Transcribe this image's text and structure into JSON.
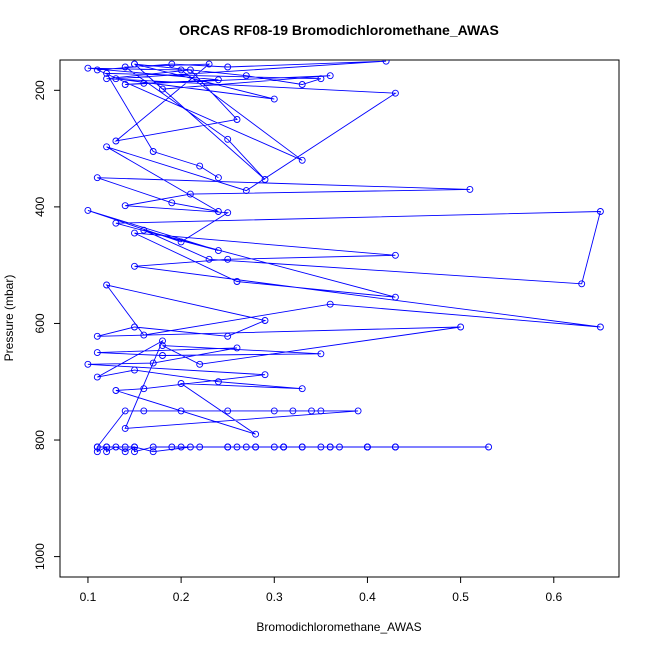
{
  "chart_data": {
    "type": "line",
    "title": "ORCAS RF08-19 Bromodichloromethane_AWAS",
    "xlabel": "Bromodichloromethane_AWAS",
    "ylabel": "Pressure (mbar)",
    "xlim": [
      0.07,
      0.67
    ],
    "ylim": [
      1035,
      148
    ],
    "y_reversed": true,
    "grid": false,
    "legend": "none",
    "x_ticks": [
      "0.1",
      "0.2",
      "0.3",
      "0.4",
      "0.5",
      "0.6"
    ],
    "x_tick_values": [
      0.1,
      0.2,
      0.3,
      0.4,
      0.5,
      0.6
    ],
    "y_ticks": [
      "200",
      "400",
      "600",
      "800",
      "1000"
    ],
    "y_tick_values": [
      200,
      400,
      600,
      800,
      1000
    ],
    "series_color": "#0000ff",
    "series": [
      {
        "x": [
          0.11,
          0.11,
          0.12,
          0.12,
          0.13,
          0.14,
          0.15,
          0.15,
          0.17,
          0.19,
          0.2,
          0.22,
          0.25,
          0.26,
          0.27,
          0.28,
          0.3,
          0.31,
          0.31,
          0.33,
          0.35,
          0.36,
          0.37,
          0.4,
          0.4,
          0.43,
          0.53,
          0.43,
          0.4,
          0.36,
          0.33,
          0.31,
          0.28,
          0.25,
          0.21,
          0.17,
          0.15,
          0.14,
          0.12,
          0.11,
          0.14,
          0.16,
          0.2,
          0.25,
          0.3,
          0.32,
          0.34,
          0.35,
          0.39,
          0.14,
          0.18,
          0.11,
          0.15,
          0.24,
          0.33,
          0.2,
          0.28,
          0.13,
          0.16,
          0.29,
          0.1,
          0.17,
          0.26,
          0.11,
          0.18,
          0.35,
          0.18,
          0.22,
          0.5,
          0.11,
          0.15,
          0.25,
          0.29,
          0.12,
          0.16,
          0.36,
          0.65,
          0.15,
          0.25,
          0.43,
          0.15,
          0.26,
          0.43,
          0.16,
          0.23,
          0.63,
          0.65,
          0.13,
          0.24,
          0.1,
          0.2,
          0.25,
          0.14,
          0.21,
          0.51,
          0.11,
          0.19,
          0.24,
          0.12,
          0.27,
          0.43,
          0.12,
          0.21,
          0.26,
          0.13,
          0.23,
          0.14,
          0.25,
          0.29,
          0.15,
          0.18,
          0.36,
          0.14,
          0.16,
          0.24,
          0.1,
          0.2,
          0.33,
          0.11,
          0.19,
          0.25,
          0.42,
          0.13,
          0.3,
          0.15,
          0.27,
          0.33,
          0.35,
          0.12,
          0.17,
          0.22,
          0.24
        ],
        "y": [
          812,
          820,
          812,
          820,
          812,
          820,
          812,
          820,
          812,
          812,
          812,
          812,
          812,
          812,
          812,
          812,
          812,
          812,
          812,
          812,
          812,
          812,
          812,
          812,
          812,
          812,
          812,
          812,
          812,
          812,
          812,
          812,
          812,
          812,
          812,
          820,
          812,
          812,
          812,
          812,
          750,
          750,
          750,
          750,
          750,
          750,
          750,
          750,
          750,
          780,
          630,
          692,
          680,
          700,
          712,
          703,
          790,
          715,
          712,
          688,
          670,
          668,
          642,
          650,
          655,
          652,
          638,
          670,
          606,
          622,
          606,
          622,
          595,
          534,
          620,
          567,
          606,
          502,
          490,
          483,
          445,
          528,
          555,
          440,
          490,
          532,
          408,
          428,
          475,
          406,
          460,
          410,
          398,
          378,
          370,
          350,
          393,
          408,
          297,
          372,
          205,
          180,
          165,
          250,
          287,
          155,
          160,
          284,
          353,
          155,
          198,
          175,
          190,
          188,
          182,
          162,
          165,
          320,
          165,
          155,
          160,
          150,
          180,
          215,
          155,
          175,
          190,
          180,
          171,
          305,
          330,
          350
        ]
      }
    ]
  }
}
